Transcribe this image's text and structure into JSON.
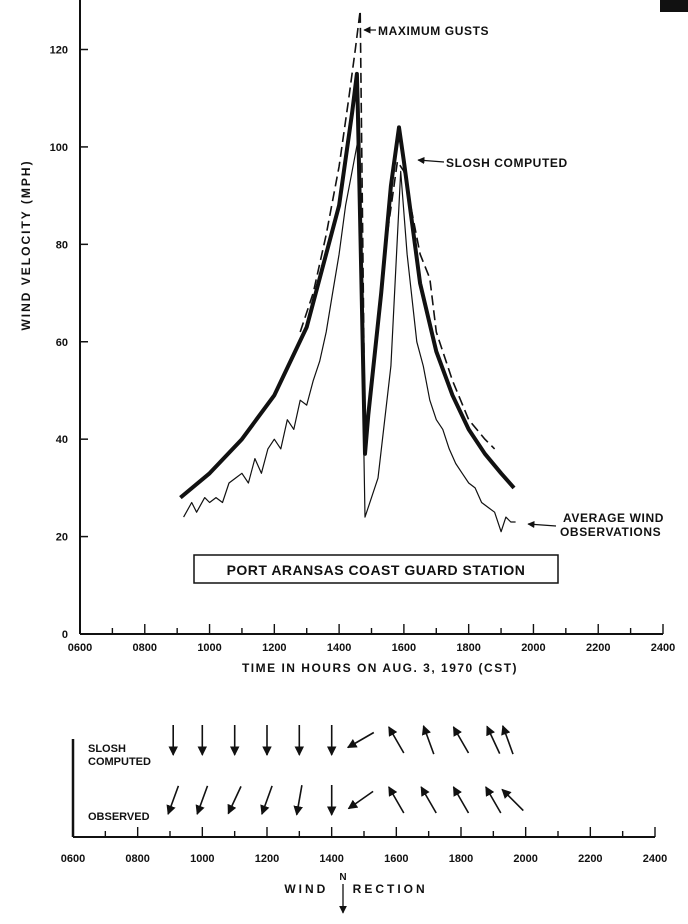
{
  "chart_data": [
    {
      "type": "line",
      "title": "PORT ARANSAS COAST GUARD STATION",
      "xlabel": "TIME IN HOURS ON AUG. 3, 1970 (CST)",
      "ylabel": "WIND VELOCITY (MPH)",
      "xlim": [
        600,
        2400
      ],
      "ylim": [
        0,
        130
      ],
      "x_tick_labels": [
        "0600",
        "0800",
        "1000",
        "1200",
        "1400",
        "1600",
        "1800",
        "2000",
        "2200",
        "2400"
      ],
      "y_tick_labels": [
        "0",
        "20",
        "40",
        "60",
        "80",
        "100",
        "120"
      ],
      "grid": false,
      "series": [
        {
          "name": "SLOSH COMPUTED",
          "style": "thick",
          "x": [
            910,
            1000,
            1100,
            1200,
            1300,
            1400,
            1440,
            1455,
            1458,
            1480,
            1490,
            1530,
            1560,
            1585,
            1600,
            1650,
            1700,
            1750,
            1800,
            1850,
            1900,
            1940
          ],
          "y": [
            28,
            33,
            40,
            49,
            63,
            88,
            107,
            115,
            107,
            37,
            45,
            70,
            92,
            104,
            97,
            72,
            58,
            49,
            42,
            37,
            33,
            30
          ]
        },
        {
          "name": "MAXIMUM GUSTS",
          "style": "dashed",
          "x": [
            1280,
            1320,
            1360,
            1400,
            1430,
            1450,
            1465,
            1480,
            1490,
            1540,
            1580,
            1600,
            1650,
            1680,
            1700,
            1750,
            1800,
            1850,
            1880
          ],
          "y": [
            62,
            70,
            82,
            96,
            110,
            120,
            128,
            39,
            46,
            78,
            97,
            95,
            78,
            73,
            62,
            52,
            44,
            40,
            38
          ]
        },
        {
          "name": "AVERAGE WIND OBSERVATIONS",
          "style": "thin",
          "x": [
            920,
            945,
            960,
            985,
            1000,
            1020,
            1040,
            1060,
            1080,
            1100,
            1120,
            1140,
            1160,
            1180,
            1200,
            1220,
            1240,
            1260,
            1280,
            1300,
            1320,
            1340,
            1360,
            1380,
            1400,
            1420,
            1440,
            1460,
            1480,
            1520,
            1560,
            1590,
            1610,
            1640,
            1660,
            1680,
            1700,
            1720,
            1740,
            1760,
            1780,
            1800,
            1820,
            1840,
            1860,
            1880,
            1900,
            1915,
            1930,
            1945
          ],
          "y": [
            24,
            27,
            25,
            28,
            27,
            28,
            27,
            31,
            32,
            33,
            31,
            36,
            33,
            38,
            40,
            38,
            44,
            42,
            48,
            47,
            52,
            56,
            62,
            70,
            78,
            88,
            95,
            102,
            24,
            32,
            55,
            95,
            78,
            60,
            55,
            48,
            44,
            42,
            38,
            35,
            33,
            31,
            30,
            27,
            26,
            25,
            21,
            24,
            23,
            23
          ]
        }
      ],
      "annotations": {
        "max_gusts": "MAXIMUM GUSTS",
        "slosh": "SLOSH COMPUTED",
        "avg_line1": "AVERAGE WIND",
        "avg_line2": "OBSERVATIONS"
      }
    },
    {
      "type": "other",
      "title": "WIND DIRECTION",
      "xlim": [
        600,
        2400
      ],
      "x_tick_labels": [
        "0600",
        "0800",
        "1000",
        "1200",
        "1400",
        "1600",
        "1800",
        "2000",
        "2200",
        "2400"
      ],
      "north_label": "N",
      "row_labels": {
        "slosh_line1": "SLOSH",
        "slosh_line2": "COMPUTED",
        "observed": "OBSERVED"
      },
      "slosh_computed_direction_deg": [
        {
          "x": 910,
          "deg": 180
        },
        {
          "x": 1000,
          "deg": 180
        },
        {
          "x": 1100,
          "deg": 180
        },
        {
          "x": 1200,
          "deg": 180
        },
        {
          "x": 1300,
          "deg": 180
        },
        {
          "x": 1400,
          "deg": 180
        },
        {
          "x": 1490,
          "deg": 240
        },
        {
          "x": 1600,
          "deg": 330
        },
        {
          "x": 1700,
          "deg": 340
        },
        {
          "x": 1800,
          "deg": 330
        },
        {
          "x": 1900,
          "deg": 335
        },
        {
          "x": 1945,
          "deg": 340
        }
      ],
      "observed_direction_deg": [
        {
          "x": 910,
          "deg": 200
        },
        {
          "x": 1000,
          "deg": 200
        },
        {
          "x": 1100,
          "deg": 205
        },
        {
          "x": 1200,
          "deg": 200
        },
        {
          "x": 1300,
          "deg": 190
        },
        {
          "x": 1400,
          "deg": 180
        },
        {
          "x": 1490,
          "deg": 235
        },
        {
          "x": 1600,
          "deg": 330
        },
        {
          "x": 1700,
          "deg": 330
        },
        {
          "x": 1800,
          "deg": 330
        },
        {
          "x": 1900,
          "deg": 330
        },
        {
          "x": 1960,
          "deg": 315
        }
      ]
    }
  ]
}
